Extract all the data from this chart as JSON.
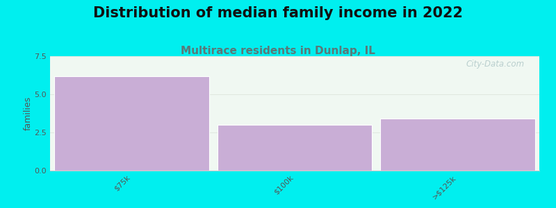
{
  "title": "Distribution of median family income in 2022",
  "subtitle": "Multirace residents in Dunlap, IL",
  "categories": [
    "$75k",
    "$100k",
    ">$125k"
  ],
  "values": [
    6.2,
    3.0,
    3.4
  ],
  "bar_color": "#c9aed6",
  "bar_edgecolor": "#ffffff",
  "background_color": "#00efef",
  "plot_bg_color": "#f0f8f2",
  "title_fontsize": 15,
  "subtitle_fontsize": 11,
  "subtitle_color": "#5a7878",
  "ylabel": "families",
  "ylabel_fontsize": 9,
  "ylim": [
    0,
    7.5
  ],
  "yticks": [
    0,
    2.5,
    5.0,
    7.5
  ],
  "watermark": "City-Data.com",
  "watermark_color": "#b0c8c8",
  "tick_label_fontsize": 8,
  "grid_color": "#e0e8e0",
  "bar_width": 0.95
}
